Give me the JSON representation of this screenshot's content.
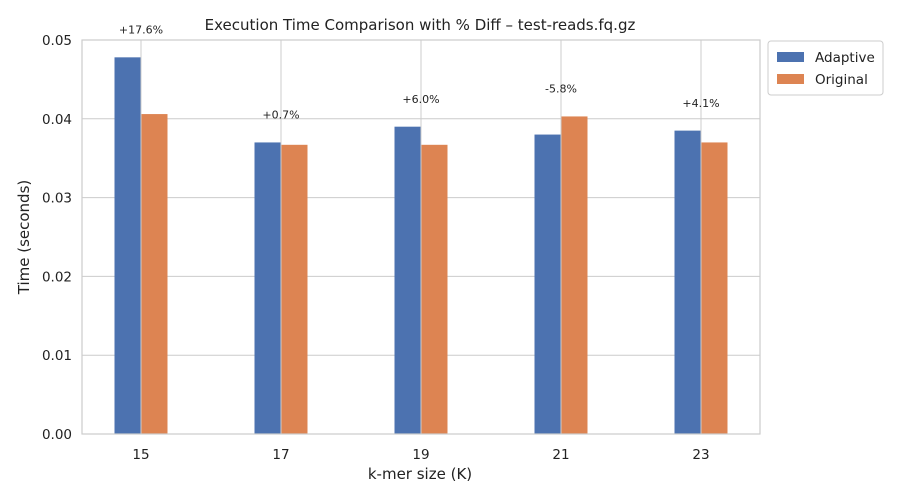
{
  "chart_data": {
    "type": "bar",
    "title": "Execution Time Comparison with % Diff – test-reads.fq.gz",
    "xlabel": "k-mer size (K)",
    "ylabel": "Time (seconds)",
    "categories": [
      "15",
      "17",
      "19",
      "21",
      "23"
    ],
    "series": [
      {
        "name": "Adaptive",
        "color": "#4c72b0",
        "values": [
          0.0478,
          0.037,
          0.039,
          0.038,
          0.0385
        ]
      },
      {
        "name": "Original",
        "color": "#dd8452",
        "values": [
          0.0406,
          0.0367,
          0.0367,
          0.0403,
          0.037
        ]
      }
    ],
    "annotations": [
      "+17.6%",
      "+0.7%",
      "+6.0%",
      "-5.8%",
      "+4.1%"
    ],
    "ylim": [
      0,
      0.05
    ],
    "yticks": [
      "0.00",
      "0.01",
      "0.02",
      "0.03",
      "0.04",
      "0.05"
    ],
    "grid": true,
    "legend_position": "outside-top-right"
  }
}
